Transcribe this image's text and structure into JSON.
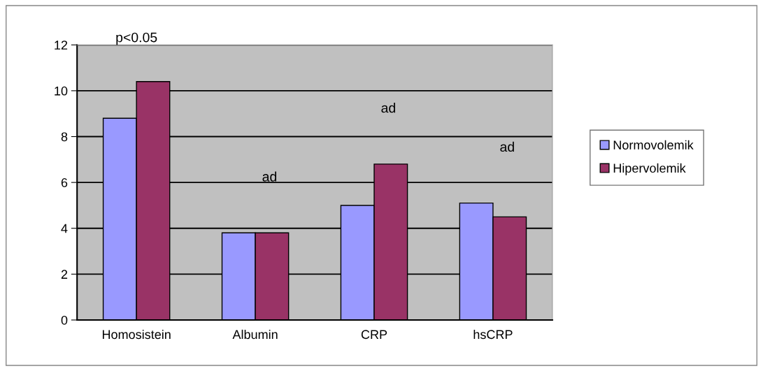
{
  "chart_data": {
    "type": "bar",
    "categories": [
      "Homosistein",
      "Albumin",
      "CRP",
      "hsCRP"
    ],
    "series": [
      {
        "name": "Normovolemik",
        "color": "#9999ff",
        "values": [
          8.8,
          3.8,
          5.0,
          5.1
        ]
      },
      {
        "name": "Hipervolemik",
        "color": "#993366",
        "values": [
          10.4,
          3.8,
          6.8,
          4.5
        ]
      }
    ],
    "ylim": [
      0,
      12
    ],
    "yticks": [
      0,
      2,
      4,
      6,
      8,
      10,
      12
    ],
    "grid": "y",
    "legend": "right",
    "annotations": [
      "p<0.05",
      "ad",
      "ad",
      "ad"
    ]
  }
}
